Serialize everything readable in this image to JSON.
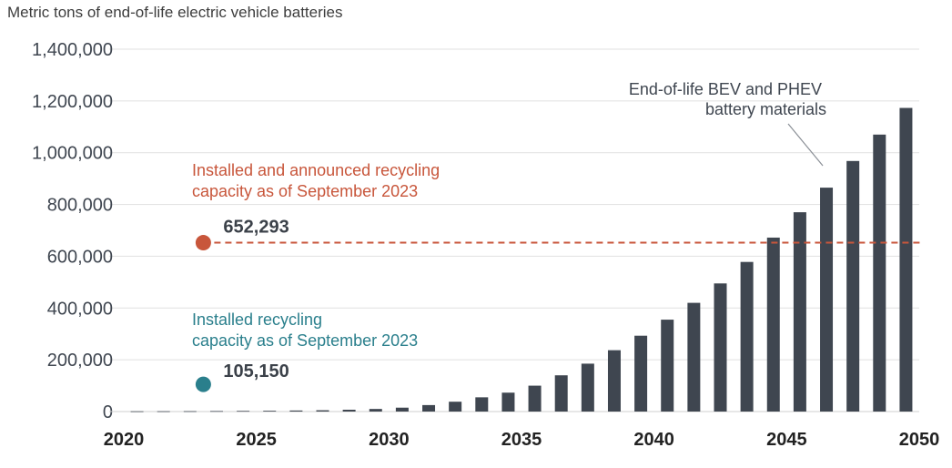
{
  "chart_data": {
    "type": "bar",
    "ylabel": "Metric tons of end-of-life electric vehicle batteries",
    "ylim": [
      0,
      1400000
    ],
    "yticks": [
      0,
      200000,
      400000,
      600000,
      800000,
      1000000,
      1200000,
      1400000
    ],
    "ytick_labels": [
      "0",
      "200,000",
      "400,000",
      "600,000",
      "800,000",
      "1,000,000",
      "1,200,000",
      "1,400,000"
    ],
    "xlim": [
      2020,
      2050
    ],
    "xticks": [
      2020,
      2025,
      2030,
      2035,
      2040,
      2045,
      2050
    ],
    "xtick_labels": [
      "2020",
      "2025",
      "2030",
      "2035",
      "2040",
      "2045",
      "2050"
    ],
    "grid": true,
    "series": [
      {
        "name": "End-of-life BEV and PHEV battery materials",
        "color": "#3f4650",
        "x": [
          2020.5,
          2021.5,
          2022.5,
          2023.5,
          2024.5,
          2025.5,
          2026.5,
          2027.5,
          2028.5,
          2029.5,
          2030.5,
          2031.5,
          2032.5,
          2033.5,
          2034.5,
          2035.5,
          2036.5,
          2037.5,
          2038.5,
          2039.5,
          2040.5,
          2041.5,
          2042.5,
          2043.5,
          2044.5,
          2045.5,
          2046.5,
          2047.5,
          2048.5,
          2049.5
        ],
        "values": [
          1000,
          1200,
          1500,
          2000,
          2500,
          3000,
          4000,
          5000,
          7000,
          10000,
          15000,
          25000,
          38000,
          55000,
          73000,
          100000,
          140000,
          185000,
          237000,
          293000,
          355000,
          420000,
          495000,
          578000,
          672000,
          770000,
          865000,
          968000,
          1070000,
          1173000
        ]
      }
    ],
    "annotations": [
      {
        "label_lines": [
          "Installed and announced recycling",
          "capacity as of September 2023"
        ],
        "value_label": "652,293",
        "x": 2023,
        "value": 652293,
        "color": "#c8563b",
        "reference_line": true
      },
      {
        "label_lines": [
          "Installed recycling",
          "capacity as of September 2023"
        ],
        "value_label": "105,150",
        "x": 2023,
        "value": 105150,
        "color": "#2a7f8c",
        "reference_line": false
      },
      {
        "label_lines": [
          "End-of-life BEV and PHEV",
          "battery materials"
        ],
        "color": "#3f4650",
        "points_to_x": 2046.5
      }
    ]
  }
}
